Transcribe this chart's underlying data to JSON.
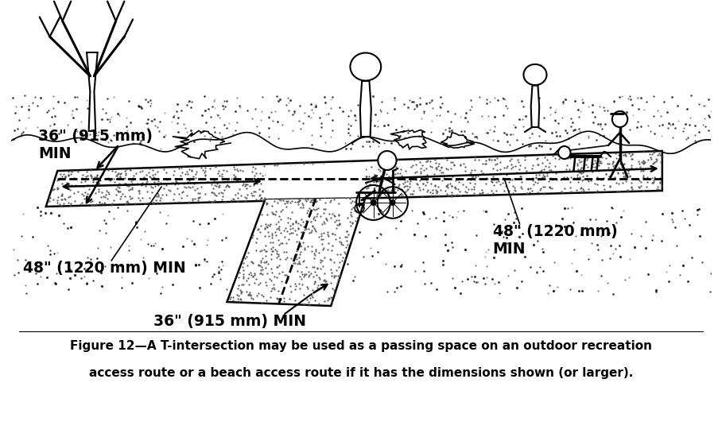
{
  "figure_width": 9.08,
  "figure_height": 5.5,
  "dpi": 100,
  "bg_color": "#ffffff",
  "caption_line1": "Figure 12—A T-intersection may be used as a passing space on an outdoor recreation",
  "caption_line2": "access route or a beach access route if it has the dimensions shown (or larger).",
  "caption_fontsize": 11.0,
  "label_36_top": "36\" (915 mm)\nMIN",
  "label_36_bottom": "36\" (915 mm) MIN",
  "label_48_left": "48\" (1220 mm) MIN",
  "label_48_right": "48\" (1220 mm)\nMIN",
  "label_fontsize": 13.5
}
